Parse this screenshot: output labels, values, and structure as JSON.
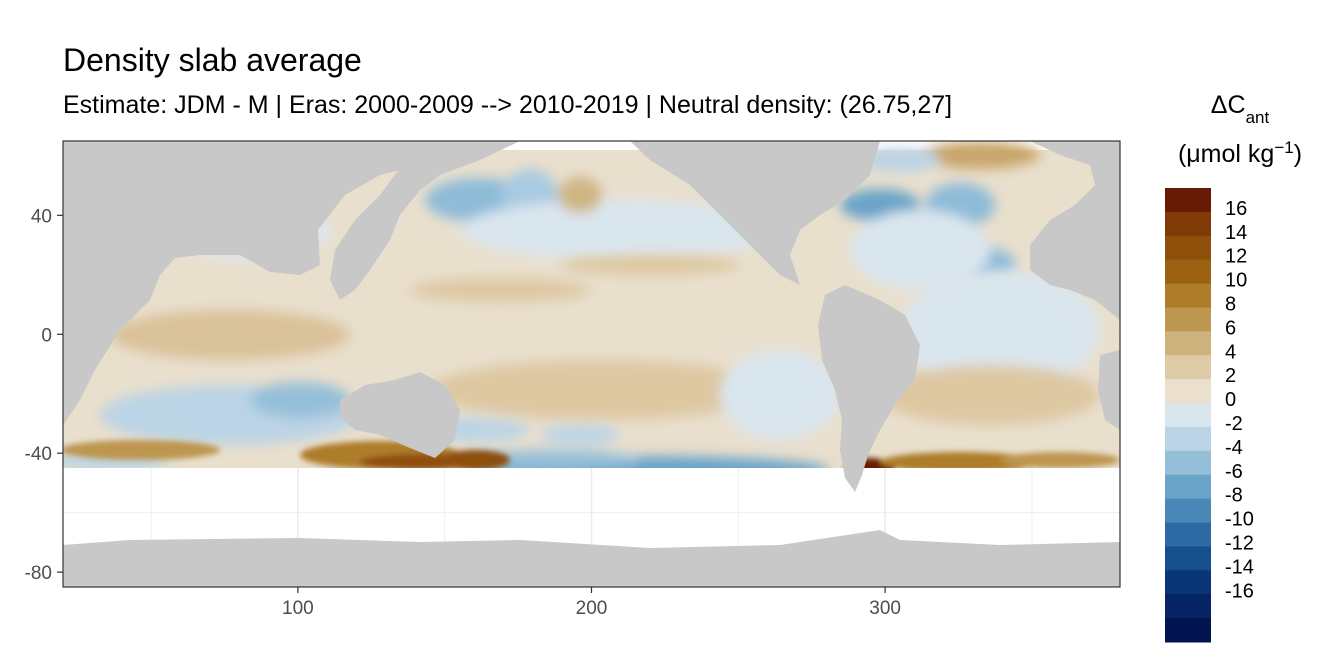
{
  "chart_data": {
    "type": "heatmap",
    "title": "Density slab average",
    "subtitle": "Estimate: JDM - M | Eras: 2000-2009 --> 2010-2019 | Neutral density: (26.75,27]",
    "xlabel": "",
    "ylabel": "",
    "xlim": [
      20,
      380
    ],
    "ylim": [
      -85,
      65
    ],
    "x_ticks": [
      100,
      200,
      300
    ],
    "y_ticks": [
      40,
      0,
      -40,
      -80
    ],
    "grid": true,
    "legend": {
      "position": "right",
      "title": "ΔC",
      "title_subscript": "ant",
      "units": "(μmol kg",
      "units_superscript": "−1",
      "units_close": ")",
      "levels": [
        "16",
        "14",
        "12",
        "10",
        "8",
        "6",
        "4",
        "2",
        "0",
        "-2",
        "-4",
        "-6",
        "-8",
        "-10",
        "-12",
        "-14",
        "-16"
      ],
      "colors": [
        "#671a06",
        "#7f3a08",
        "#8e4f0a",
        "#9c6212",
        "#ad7d2c",
        "#bd9650",
        "#cdb27e",
        "#ddcaa6",
        "#ebe0cd",
        "#dae6ee",
        "#bbd4e5",
        "#95bfd9",
        "#6aa4c9",
        "#4a88b8",
        "#2e6aa3",
        "#154f8d",
        "#0a3577",
        "#062464",
        "#031550"
      ]
    }
  }
}
